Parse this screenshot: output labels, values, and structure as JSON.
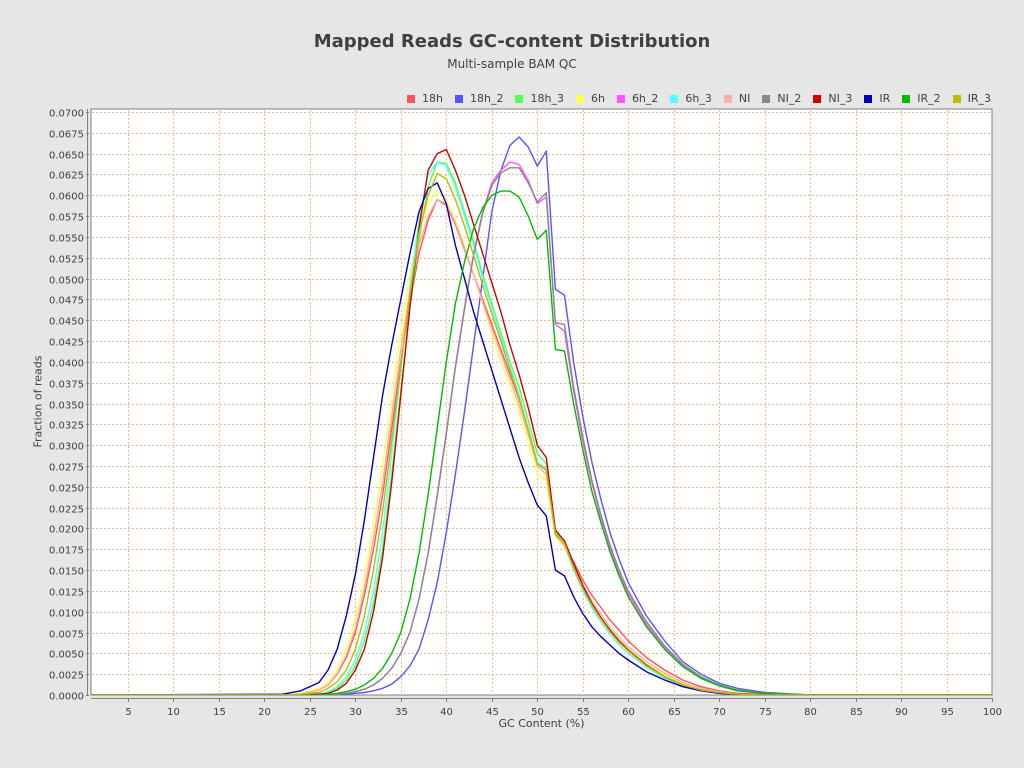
{
  "chart_data": {
    "type": "line",
    "title": "Mapped Reads GC-content Distribution",
    "subtitle": "Multi-sample BAM QC",
    "xlabel": "GC Content (%)",
    "ylabel": "Fraction of reads",
    "xlim": [
      1,
      100
    ],
    "ylim": [
      0,
      0.07
    ],
    "grid": true,
    "legend_position": "top-right",
    "x_ticks": [
      "5",
      "10",
      "15",
      "20",
      "25",
      "30",
      "35",
      "40",
      "45",
      "50",
      "55",
      "60",
      "65",
      "70",
      "75",
      "80",
      "85",
      "90",
      "95",
      "100"
    ],
    "y_ticks": [
      "0.0000",
      "0.0025",
      "0.0050",
      "0.0075",
      "0.0100",
      "0.0125",
      "0.0150",
      "0.0175",
      "0.0200",
      "0.0225",
      "0.0250",
      "0.0275",
      "0.0300",
      "0.0325",
      "0.0350",
      "0.0375",
      "0.0400",
      "0.0425",
      "0.0450",
      "0.0475",
      "0.0500",
      "0.0525",
      "0.0550",
      "0.0575",
      "0.0600",
      "0.0625",
      "0.0650",
      "0.0675",
      "0.0700"
    ],
    "x": [
      22,
      24,
      26,
      27,
      28,
      29,
      30,
      31,
      32,
      33,
      34,
      35,
      36,
      37,
      38,
      39,
      40,
      41,
      42,
      43,
      44,
      45,
      46,
      47,
      48,
      49,
      50,
      51,
      52,
      53,
      54,
      55,
      56,
      57,
      58,
      59,
      60,
      62,
      64,
      66,
      68,
      70,
      72,
      75,
      80
    ],
    "series": [
      {
        "name": "18h",
        "color": "#ff5555",
        "values": [
          0,
          0.0001,
          0.0006,
          0.0012,
          0.0025,
          0.0045,
          0.0075,
          0.012,
          0.0175,
          0.024,
          0.032,
          0.04,
          0.047,
          0.053,
          0.057,
          0.0595,
          0.0588,
          0.0565,
          0.0535,
          0.0505,
          0.0475,
          0.0445,
          0.0415,
          0.0385,
          0.0355,
          0.032,
          0.028,
          0.027,
          0.0195,
          0.018,
          0.016,
          0.0138,
          0.012,
          0.0105,
          0.009,
          0.0078,
          0.0065,
          0.0045,
          0.003,
          0.0018,
          0.001,
          0.0005,
          0.0002,
          0.0001,
          0
        ]
      },
      {
        "name": "18h_2",
        "color": "#5555ff",
        "values": [
          0,
          0,
          0,
          0,
          0,
          0.0001,
          0.0002,
          0.0003,
          0.0005,
          0.0008,
          0.0013,
          0.0022,
          0.0035,
          0.0055,
          0.009,
          0.0135,
          0.0195,
          0.0265,
          0.034,
          0.042,
          0.05,
          0.058,
          0.063,
          0.066,
          0.067,
          0.0658,
          0.0635,
          0.0653,
          0.0487,
          0.048,
          0.04,
          0.0335,
          0.028,
          0.0235,
          0.0195,
          0.0163,
          0.0135,
          0.0095,
          0.0065,
          0.004,
          0.0025,
          0.0014,
          0.0008,
          0.0003,
          0
        ]
      },
      {
        "name": "18h_3",
        "color": "#55ff55",
        "values": [
          0,
          0,
          0.0001,
          0.0003,
          0.0008,
          0.0018,
          0.0035,
          0.0065,
          0.011,
          0.0175,
          0.0265,
          0.0365,
          0.0465,
          0.0545,
          0.061,
          0.064,
          0.0638,
          0.0615,
          0.058,
          0.0545,
          0.0505,
          0.047,
          0.0435,
          0.04,
          0.037,
          0.033,
          0.029,
          0.0278,
          0.0195,
          0.0185,
          0.0155,
          0.013,
          0.011,
          0.0092,
          0.0078,
          0.0065,
          0.0055,
          0.0037,
          0.0023,
          0.0013,
          0.0007,
          0.0003,
          0.0001,
          0,
          0
        ]
      },
      {
        "name": "6h",
        "color": "#ffff55",
        "values": [
          0,
          0.0002,
          0.0008,
          0.0015,
          0.003,
          0.0055,
          0.009,
          0.014,
          0.0205,
          0.0275,
          0.0355,
          0.0435,
          0.0505,
          0.0555,
          0.059,
          0.0605,
          0.0595,
          0.057,
          0.054,
          0.0505,
          0.047,
          0.0435,
          0.04,
          0.037,
          0.034,
          0.0305,
          0.0265,
          0.0258,
          0.019,
          0.0178,
          0.015,
          0.0128,
          0.0108,
          0.0092,
          0.0078,
          0.0065,
          0.0055,
          0.0037,
          0.0024,
          0.0014,
          0.0007,
          0.0003,
          0.0001,
          0,
          0
        ]
      },
      {
        "name": "6h_2",
        "color": "#ff55ff",
        "values": [
          0,
          0,
          0,
          0,
          0.0001,
          0.0002,
          0.0004,
          0.0007,
          0.0012,
          0.002,
          0.0032,
          0.005,
          0.0075,
          0.0115,
          0.017,
          0.024,
          0.0315,
          0.0395,
          0.0465,
          0.053,
          0.058,
          0.0615,
          0.063,
          0.064,
          0.0637,
          0.0618,
          0.059,
          0.0598,
          0.0445,
          0.0437,
          0.0365,
          0.0305,
          0.0255,
          0.0213,
          0.0177,
          0.0147,
          0.0122,
          0.0085,
          0.0057,
          0.0035,
          0.0021,
          0.0011,
          0.0006,
          0.0002,
          0
        ]
      },
      {
        "name": "6h_3",
        "color": "#55ffff",
        "values": [
          0,
          0,
          0.0001,
          0.0004,
          0.001,
          0.0022,
          0.0042,
          0.0075,
          0.0125,
          0.0195,
          0.029,
          0.039,
          0.049,
          0.057,
          0.0625,
          0.064,
          0.0635,
          0.061,
          0.0575,
          0.054,
          0.05,
          0.0465,
          0.043,
          0.0395,
          0.036,
          0.032,
          0.028,
          0.0272,
          0.0192,
          0.018,
          0.015,
          0.0125,
          0.0105,
          0.0088,
          0.0073,
          0.006,
          0.005,
          0.0033,
          0.002,
          0.0011,
          0.0006,
          0.0002,
          0.0001,
          0,
          0
        ]
      },
      {
        "name": "NI",
        "color": "#ffaaaa",
        "values": [
          0,
          0.0001,
          0.0006,
          0.0012,
          0.0026,
          0.0048,
          0.008,
          0.0128,
          0.0188,
          0.0255,
          0.0335,
          0.0415,
          0.0485,
          0.054,
          0.0575,
          0.0595,
          0.059,
          0.0567,
          0.0537,
          0.0505,
          0.0472,
          0.044,
          0.041,
          0.0378,
          0.0348,
          0.0313,
          0.0275,
          0.0265,
          0.0192,
          0.018,
          0.0155,
          0.0132,
          0.0113,
          0.0097,
          0.0082,
          0.0069,
          0.0058,
          0.004,
          0.0026,
          0.0015,
          0.0008,
          0.0004,
          0.0001,
          0,
          0
        ]
      },
      {
        "name": "NI_2",
        "color": "#888888",
        "values": [
          0,
          0,
          0,
          0,
          0.0001,
          0.0002,
          0.0004,
          0.0007,
          0.0012,
          0.002,
          0.0032,
          0.005,
          0.0075,
          0.0115,
          0.017,
          0.0238,
          0.0313,
          0.0393,
          0.0463,
          0.0528,
          0.0578,
          0.0612,
          0.0627,
          0.0633,
          0.0633,
          0.0615,
          0.0592,
          0.0603,
          0.0447,
          0.0445,
          0.037,
          0.031,
          0.0258,
          0.0216,
          0.018,
          0.015,
          0.0125,
          0.0088,
          0.0059,
          0.0037,
          0.0022,
          0.0012,
          0.0006,
          0.0002,
          0
        ]
      },
      {
        "name": "NI_3",
        "color": "#cc0000",
        "values": [
          0,
          0,
          0.0001,
          0.0002,
          0.0006,
          0.0014,
          0.003,
          0.0055,
          0.01,
          0.0165,
          0.0255,
          0.036,
          0.0465,
          0.056,
          0.063,
          0.065,
          0.0655,
          0.063,
          0.06,
          0.0565,
          0.053,
          0.0495,
          0.046,
          0.042,
          0.0385,
          0.0345,
          0.03,
          0.0285,
          0.0198,
          0.0185,
          0.0158,
          0.0132,
          0.011,
          0.0093,
          0.0078,
          0.0065,
          0.0054,
          0.0036,
          0.0022,
          0.0012,
          0.0006,
          0.0002,
          0.0001,
          0,
          0
        ]
      },
      {
        "name": "IR",
        "color": "#0000bb",
        "values": [
          0.0001,
          0.0005,
          0.0015,
          0.003,
          0.0055,
          0.0095,
          0.0145,
          0.021,
          0.0285,
          0.036,
          0.042,
          0.0475,
          0.053,
          0.058,
          0.0608,
          0.0615,
          0.059,
          0.054,
          0.05,
          0.046,
          0.0425,
          0.039,
          0.0355,
          0.032,
          0.0285,
          0.0255,
          0.0228,
          0.0215,
          0.015,
          0.0143,
          0.0118,
          0.0098,
          0.0082,
          0.007,
          0.006,
          0.005,
          0.0042,
          0.0028,
          0.0018,
          0.001,
          0.0005,
          0.0002,
          0.0001,
          0,
          0
        ]
      },
      {
        "name": "IR_2",
        "color": "#00bb00",
        "values": [
          0,
          0,
          0,
          0.0001,
          0.0002,
          0.0004,
          0.0007,
          0.0012,
          0.002,
          0.0032,
          0.005,
          0.0075,
          0.0115,
          0.017,
          0.024,
          0.032,
          0.04,
          0.047,
          0.052,
          0.056,
          0.0585,
          0.06,
          0.0605,
          0.0605,
          0.0598,
          0.0575,
          0.0547,
          0.0558,
          0.0415,
          0.0413,
          0.035,
          0.0295,
          0.0245,
          0.0207,
          0.0172,
          0.0143,
          0.0118,
          0.0082,
          0.0055,
          0.0034,
          0.002,
          0.0011,
          0.0005,
          0.0002,
          0
        ]
      },
      {
        "name": "IR_3",
        "color": "#bbbb00",
        "values": [
          0,
          0.0001,
          0.0003,
          0.0008,
          0.0016,
          0.003,
          0.0055,
          0.0095,
          0.015,
          0.022,
          0.0305,
          0.0395,
          0.048,
          0.0555,
          0.06,
          0.0626,
          0.062,
          0.0595,
          0.0563,
          0.0528,
          0.0492,
          0.0458,
          0.0425,
          0.039,
          0.0357,
          0.0318,
          0.0277,
          0.027,
          0.0193,
          0.0182,
          0.0153,
          0.0128,
          0.0108,
          0.0091,
          0.0076,
          0.0063,
          0.0053,
          0.0035,
          0.0022,
          0.0012,
          0.0006,
          0.0003,
          0.0001,
          0,
          0
        ]
      }
    ]
  },
  "plot": {
    "background": "#ffffff",
    "grid_color": "#f0b890",
    "page_background": "#e6e6e6"
  }
}
